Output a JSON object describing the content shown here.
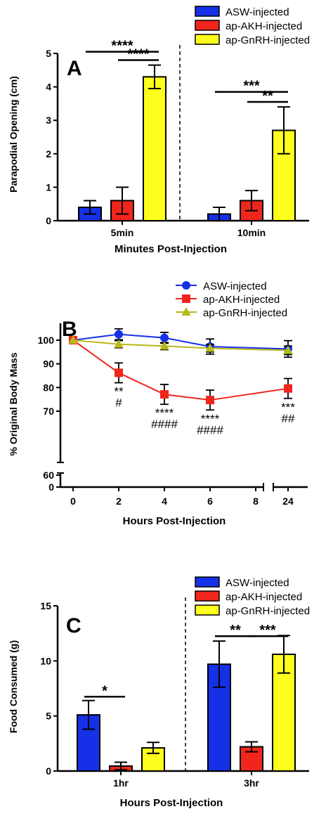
{
  "chart_data": [
    {
      "panel": "A",
      "type": "bar",
      "xlabel": "Minutes Post-Injection",
      "ylabel": "Parapodial Opening (cm)",
      "ylim": [
        0,
        5
      ],
      "yticks": [
        0,
        1,
        2,
        3,
        4,
        5
      ],
      "categories": [
        "5min",
        "10min"
      ],
      "legend_position": "top-right",
      "divider": "dashed line between groups",
      "series": [
        {
          "name": "ASW-injected",
          "color": "#1530e6",
          "values": [
            0.4,
            0.2
          ],
          "errors": [
            0.2,
            0.2
          ]
        },
        {
          "name": "ap-AKH-injected",
          "color": "#f0261d",
          "values": [
            0.6,
            0.6
          ],
          "errors": [
            0.4,
            0.3
          ]
        },
        {
          "name": "ap-GnRH-injected",
          "color": "#fdfd1e",
          "values": [
            4.3,
            2.7
          ],
          "errors": [
            0.35,
            0.7
          ]
        }
      ],
      "significance": [
        {
          "group": 0,
          "from": 0,
          "to": 2,
          "label": "****",
          "y": 5.05
        },
        {
          "group": 0,
          "from": 1,
          "to": 2,
          "label": "****",
          "y": 4.8
        },
        {
          "group": 1,
          "from": 0,
          "to": 2,
          "label": "***",
          "y": 3.85
        },
        {
          "group": 1,
          "from": 1,
          "to": 2,
          "label": "**",
          "y": 3.55
        }
      ]
    },
    {
      "panel": "B",
      "type": "line",
      "xlabel": "Hours Post-Injection",
      "ylabel": "% Original Body Mass",
      "xticks": [
        "0",
        "2",
        "4",
        "6",
        "8",
        "24"
      ],
      "yticks_upper": [
        70,
        80,
        90,
        100
      ],
      "yticks_lower": [
        0,
        60
      ],
      "legend_position": "top-right",
      "axis_breaks": "y between 60 and 70, x between 8 and 24",
      "series": [
        {
          "name": "ASW-injected",
          "color": "#1530e6",
          "marker": "circle",
          "x": [
            0,
            2,
            4,
            6,
            24
          ],
          "values": [
            100,
            102.5,
            101,
            97.3,
            96.3
          ],
          "errors": [
            0,
            2.3,
            2.3,
            3.2,
            3.5
          ]
        },
        {
          "name": "ap-AKH-injected",
          "color": "#f0261d",
          "marker": "square",
          "x": [
            0,
            2,
            4,
            6,
            24
          ],
          "values": [
            100,
            86.2,
            77.1,
            74.7,
            79.6
          ],
          "errors": [
            0,
            4.2,
            4.2,
            4.2,
            4.2
          ]
        },
        {
          "name": "ap-GnRH-injected",
          "color": "#b8b81a",
          "marker": "triangle",
          "x": [
            0,
            2,
            4,
            6,
            24
          ],
          "values": [
            100,
            98.3,
            97.5,
            96.6,
            95.7
          ],
          "errors": [
            0,
            1.5,
            1.5,
            1.6,
            1.8
          ]
        }
      ],
      "annotations": [
        {
          "x": 2,
          "lines": [
            "**",
            "#"
          ]
        },
        {
          "x": 4,
          "lines": [
            "****",
            "####"
          ]
        },
        {
          "x": 6,
          "lines": [
            "****",
            "####"
          ]
        },
        {
          "x": 24,
          "lines": [
            "***",
            "##"
          ]
        }
      ]
    },
    {
      "panel": "C",
      "type": "bar",
      "xlabel": "Hours Post-Injection",
      "ylabel": "Food Consumed (g)",
      "ylim": [
        0,
        15
      ],
      "yticks": [
        0,
        5,
        10,
        15
      ],
      "categories": [
        "1hr",
        "3hr"
      ],
      "legend_position": "top-right",
      "divider": "dashed line between groups",
      "series": [
        {
          "name": "ASW-injected",
          "color": "#1530e6",
          "values": [
            5.1,
            9.7
          ],
          "errors": [
            1.3,
            2.1
          ]
        },
        {
          "name": "ap-AKH-injected",
          "color": "#f0261d",
          "values": [
            0.45,
            2.2
          ],
          "errors": [
            0.35,
            0.45
          ]
        },
        {
          "name": "ap-GnRH-injected",
          "color": "#fdfd1e",
          "values": [
            2.1,
            10.6
          ],
          "errors": [
            0.5,
            1.7
          ]
        }
      ],
      "significance": [
        {
          "group": 0,
          "from": 0,
          "to": 1,
          "label": "*",
          "y": 6.75
        },
        {
          "group": 1,
          "from": 0,
          "to": 1,
          "label": "**",
          "y": 12.25
        },
        {
          "group": 1,
          "from": 1,
          "to": 2,
          "label": "***",
          "y": 12.25
        }
      ]
    }
  ]
}
